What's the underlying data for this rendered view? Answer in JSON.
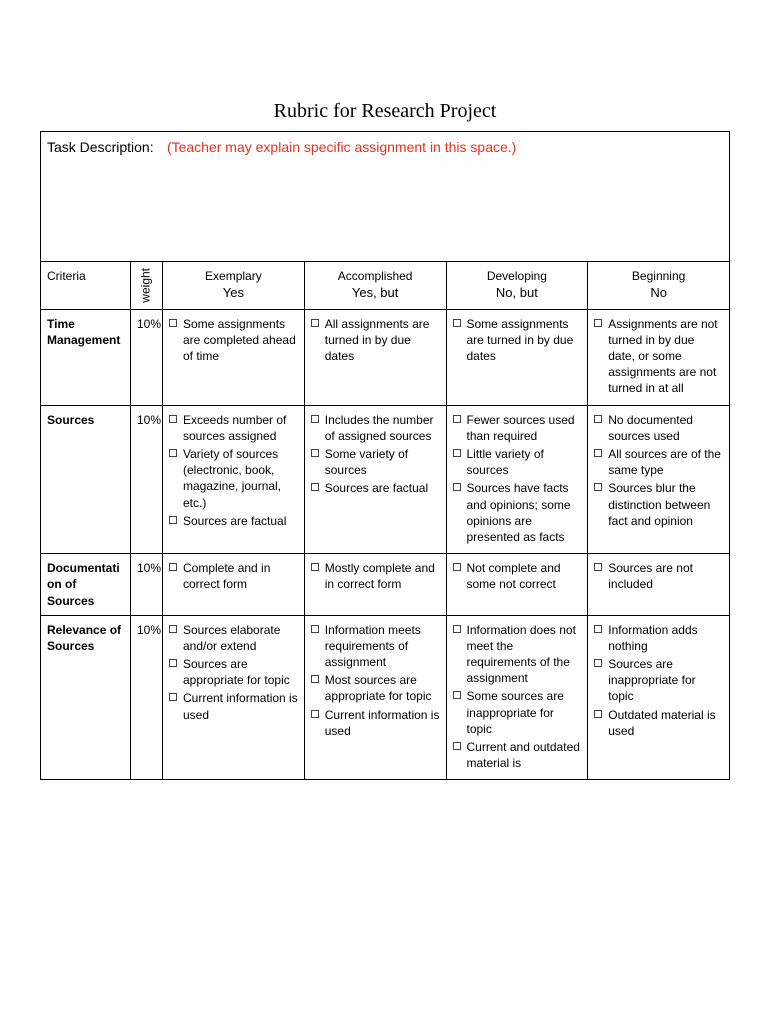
{
  "title": "Rubric for Research Project",
  "task_description": {
    "label": "Task Description:",
    "placeholder": "(Teacher may explain specific assignment in this space.)"
  },
  "headers": {
    "criteria": "Criteria",
    "weight": "weight",
    "levels": [
      {
        "line1": "Exemplary",
        "line2": "Yes"
      },
      {
        "line1": "Accomplished",
        "line2": "Yes, but"
      },
      {
        "line1": "Developing",
        "line2": "No, but"
      },
      {
        "line1": "Beginning",
        "line2": "No"
      }
    ]
  },
  "rows": [
    {
      "criteria": "Time Management",
      "weight": "10%",
      "cells": [
        [
          "Some assignments are completed ahead of time"
        ],
        [
          "All assignments are turned in by due dates"
        ],
        [
          "Some assignments are turned in by due dates"
        ],
        [
          "Assignments are not turned in by due date, or some assignments are not turned in at all"
        ]
      ]
    },
    {
      "criteria": "Sources",
      "weight": "10%",
      "cells": [
        [
          "Exceeds number of sources assigned",
          "Variety of sources (electronic, book, magazine, journal, etc.)",
          "Sources are factual"
        ],
        [
          "Includes the number of assigned sources",
          "Some variety of sources",
          "Sources are factual"
        ],
        [
          "Fewer sources used than required",
          "Little variety of sources",
          "Sources have facts and opinions; some opinions are presented as facts"
        ],
        [
          "No documented sources used",
          "All sources are of the same type",
          "Sources blur the distinction between fact and opinion"
        ]
      ]
    },
    {
      "criteria": "Documentation of Sources",
      "weight": "10%",
      "cells": [
        [
          "Complete and in correct form"
        ],
        [
          "Mostly complete and in correct form"
        ],
        [
          "Not complete and some not correct"
        ],
        [
          "Sources are not included"
        ]
      ]
    },
    {
      "criteria": "Relevance of Sources",
      "weight": "10%",
      "cells": [
        [
          "Sources elaborate and/or extend",
          "Sources are appropriate for topic",
          "Current information is used"
        ],
        [
          "Information meets requirements of assignment",
          "Most sources are appropriate for topic",
          "Current information is used"
        ],
        [
          "Information does not meet the requirements of the assignment",
          "Some sources are inappropriate for topic",
          "Current and outdated material is"
        ],
        [
          "Information adds nothing",
          "Sources are inappropriate for topic",
          "Outdated material is used"
        ]
      ]
    }
  ]
}
